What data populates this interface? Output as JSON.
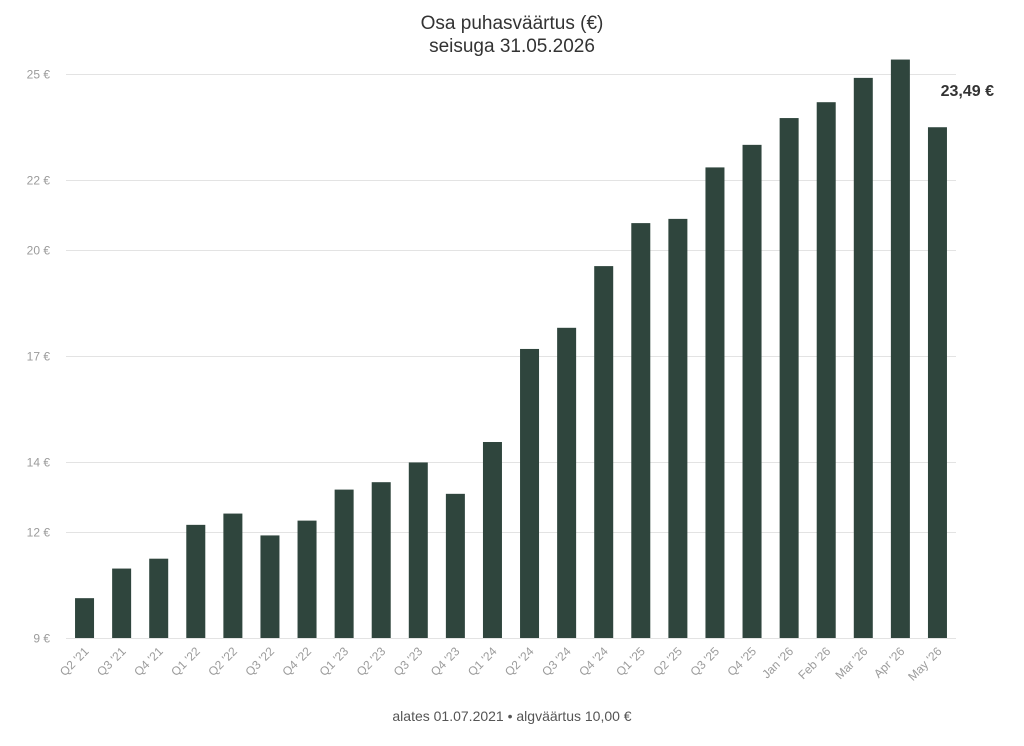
{
  "colors": {
    "bar": "#2f453d",
    "grid": "#e3e3e3",
    "text": "#333333",
    "tick": "#9b9b9b"
  },
  "header": {
    "title_line1": "Osa puhasväärtus (€)",
    "title_line2": "seisuga 31.05.2026"
  },
  "footer": {
    "text": "alates 01.07.2021 • algväärtus 10,00 €"
  },
  "chart_data": {
    "type": "bar",
    "title": "Osa puhasväärtus (€)",
    "subtitle": "seisuga 31.05.2026",
    "categories": [
      "Q2 '21",
      "Q3 '21",
      "Q4 '21",
      "Q1 '22",
      "Q2 '22",
      "Q3 '22",
      "Q4 '22",
      "Q1 '23",
      "Q2 '23",
      "Q3 '23",
      "Q4 '23",
      "Q1 '24",
      "Q2 '24",
      "Q3 '24",
      "Q4 '24",
      "Q1 '25",
      "Q2 '25",
      "Q3 '25",
      "Q4 '25",
      "Jan '26",
      "Feb '26",
      "Mar '26",
      "Apr '26",
      "May '26"
    ],
    "values": [
      10.13,
      10.97,
      11.25,
      12.21,
      12.53,
      11.91,
      12.33,
      13.21,
      13.42,
      13.98,
      13.09,
      14.56,
      17.2,
      17.8,
      19.55,
      20.77,
      20.89,
      22.35,
      22.99,
      23.75,
      24.2,
      24.89,
      25.41,
      23.49
    ],
    "ylim": [
      9,
      25
    ],
    "yticks": [
      9,
      12,
      14,
      17,
      20,
      22,
      25
    ],
    "ytick_labels": [
      "9 €",
      "12 €",
      "14 €",
      "17 €",
      "20 €",
      "22 €",
      "25 €"
    ],
    "last_value_label": "23,49 €",
    "grid": true,
    "xlabel": "",
    "ylabel": ""
  }
}
